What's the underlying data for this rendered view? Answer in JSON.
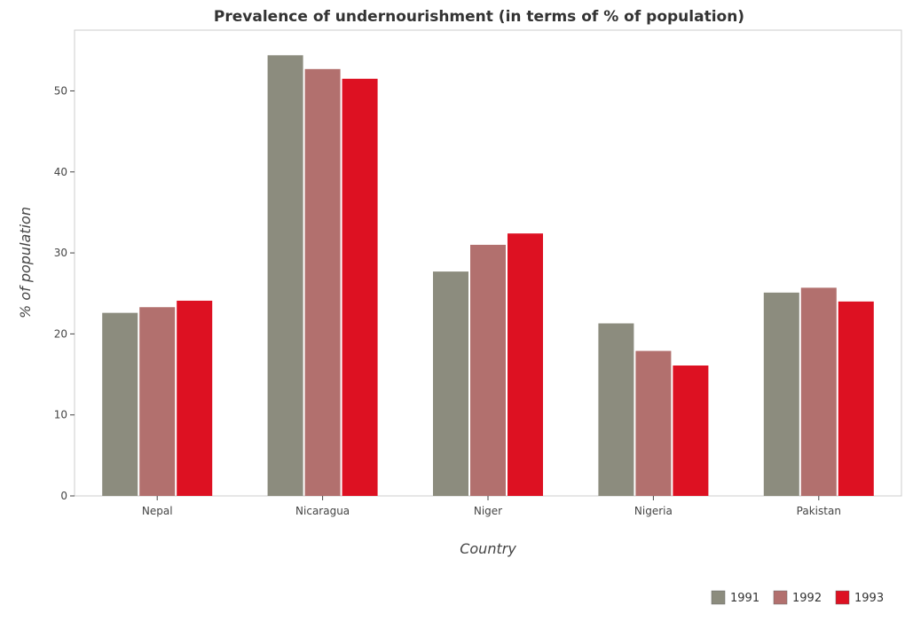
{
  "chart_data": {
    "type": "bar",
    "title": "Prevalence of undernourishment (in terms of % of population)",
    "xlabel": "Country",
    "ylabel": "% of population",
    "categories": [
      "Nepal",
      "Nicaragua",
      "Niger",
      "Nigeria",
      "Pakistan"
    ],
    "series": [
      {
        "name": "1991",
        "color": "#8c8c7e",
        "values": [
          22.6,
          54.4,
          27.7,
          21.3,
          25.1
        ]
      },
      {
        "name": "1992",
        "color": "#b2706e",
        "values": [
          23.3,
          52.7,
          31.0,
          17.9,
          25.7
        ]
      },
      {
        "name": "1993",
        "color": "#dd1122",
        "values": [
          24.1,
          51.5,
          32.4,
          16.1,
          24.0
        ]
      }
    ],
    "ylim": [
      0,
      57.5
    ],
    "yticks": [
      0,
      10,
      20,
      30,
      40,
      50
    ],
    "grid": false,
    "legend_position": "bottom-right"
  }
}
